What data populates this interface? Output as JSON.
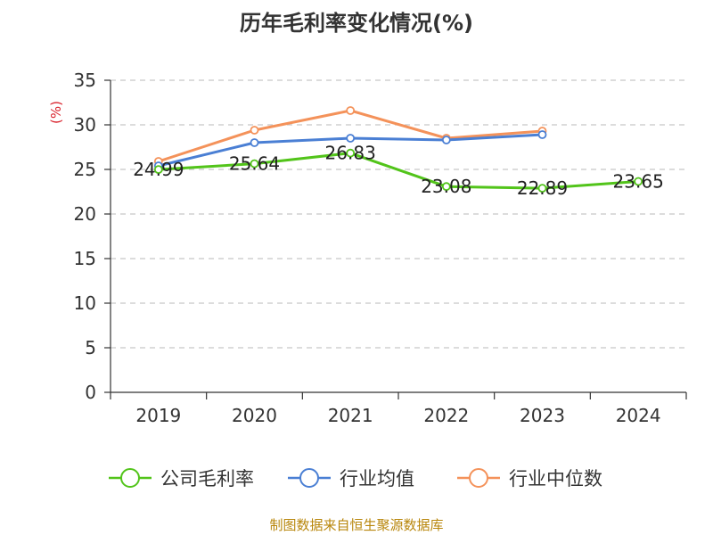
{
  "chart_data": {
    "type": "line",
    "title": "历年毛利率变化情况(%)",
    "ylabel": "(%)",
    "ylim": [
      0,
      35
    ],
    "yticks": [
      0,
      5,
      10,
      15,
      20,
      25,
      30,
      35
    ],
    "grid": true,
    "legend_position": "bottom",
    "categories": [
      "2019",
      "2020",
      "2021",
      "2022",
      "2023",
      "2024"
    ],
    "series": [
      {
        "name": "公司毛利率",
        "color": "#52c41a",
        "values": [
          24.99,
          25.64,
          26.83,
          23.08,
          22.89,
          23.65
        ],
        "labels": [
          "24.99",
          "25.64",
          "26.83",
          "23.08",
          "22.89",
          "23.65"
        ]
      },
      {
        "name": "行业均值",
        "color": "#4a7fd4",
        "values": [
          25.4,
          28.0,
          28.5,
          28.3,
          28.9,
          null
        ]
      },
      {
        "name": "行业中位数",
        "color": "#f4925a",
        "values": [
          25.9,
          29.4,
          31.6,
          28.5,
          29.3,
          null
        ]
      }
    ],
    "source": "制图数据来自恒生聚源数据库"
  }
}
